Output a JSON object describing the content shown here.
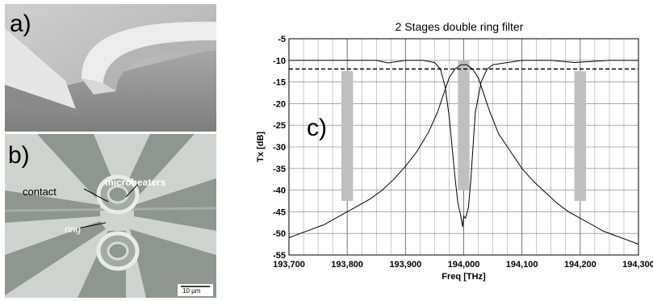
{
  "panel_a": {
    "letter": "a)"
  },
  "panel_b": {
    "letter": "b)",
    "labels": {
      "contact": "contact",
      "microheaters": "microheaters",
      "ring": "ring"
    },
    "scale_bar": "10 µm"
  },
  "panel_c": {
    "letter": "c)"
  },
  "chart_data": {
    "type": "line",
    "title": "2 Stages double ring filter",
    "xlabel": "Freq [THz]",
    "ylabel": "Tx [dB]",
    "xlim": [
      193700,
      194300
    ],
    "ylim": [
      -55,
      -5
    ],
    "x_ticks": [
      193700,
      193800,
      193900,
      194000,
      194100,
      194200,
      194300
    ],
    "x_tick_labels": [
      "193,700",
      "193,800",
      "193,900",
      "194,000",
      "194,100",
      "194,200",
      "194,300"
    ],
    "y_ticks": [
      -5,
      -10,
      -15,
      -20,
      -25,
      -30,
      -35,
      -40,
      -45,
      -50,
      -55
    ],
    "y_tick_labels": [
      "-5",
      "-10",
      "-15",
      "-20",
      "-25",
      "-30",
      "-35",
      "-40",
      "-45",
      "-50",
      "-55"
    ],
    "grid": true,
    "colors": {
      "traces": "#000000",
      "bands": "#c0c0c0",
      "grid": "#808080"
    },
    "series": [
      {
        "style": "solid",
        "x": [
          193700,
          193720,
          193740,
          193760,
          193780,
          193800,
          193820,
          193840,
          193860,
          193880,
          193900,
          193920,
          193940,
          193955,
          193965,
          193975,
          193985,
          193995,
          194000,
          194005,
          194015,
          194025,
          194035,
          194045,
          194060,
          194080,
          194100,
          194120,
          194140,
          194160,
          194180,
          194200,
          194220,
          194240,
          194260,
          194280,
          194300
        ],
        "y": [
          -51,
          -50,
          -49,
          -48,
          -46.5,
          -45,
          -43.5,
          -42,
          -40,
          -37.5,
          -34.5,
          -31,
          -26.5,
          -22,
          -18,
          -14,
          -12,
          -11,
          -11,
          -11,
          -12,
          -14,
          -18,
          -22,
          -27,
          -31,
          -35,
          -38,
          -40.5,
          -43,
          -45,
          -46.5,
          -48,
          -49.5,
          -50.5,
          -51.5,
          -52.5
        ]
      },
      {
        "style": "solid",
        "x": [
          193700,
          193750,
          193800,
          193850,
          193870,
          193900,
          193930,
          193950,
          193960,
          193968,
          193975,
          193980,
          193985,
          193990,
          193995,
          193998,
          194000,
          194003,
          194008,
          194012,
          194016,
          194020,
          194030,
          194040,
          194050,
          194100,
          194150,
          194190,
          194250,
          194300
        ],
        "y": [
          -10,
          -10,
          -10,
          -10,
          -10.6,
          -10,
          -10,
          -10.5,
          -12,
          -16,
          -23,
          -30,
          -37,
          -43,
          -46,
          -48.5,
          -46,
          -46.5,
          -44,
          -38,
          -30,
          -22,
          -15,
          -12,
          -11,
          -10,
          -10,
          -10.5,
          -10,
          -10
        ]
      },
      {
        "style": "dashed",
        "x": [
          193700,
          194300
        ],
        "y": [
          -12,
          -12
        ]
      }
    ],
    "bands": [
      {
        "x": [
          193790,
          193810
        ],
        "y": [
          -42.5,
          -12.5
        ]
      },
      {
        "x": [
          193990,
          194010
        ],
        "y": [
          -40,
          -10
        ]
      },
      {
        "x": [
          194190,
          194210
        ],
        "y": [
          -42.5,
          -12.5
        ]
      }
    ]
  }
}
